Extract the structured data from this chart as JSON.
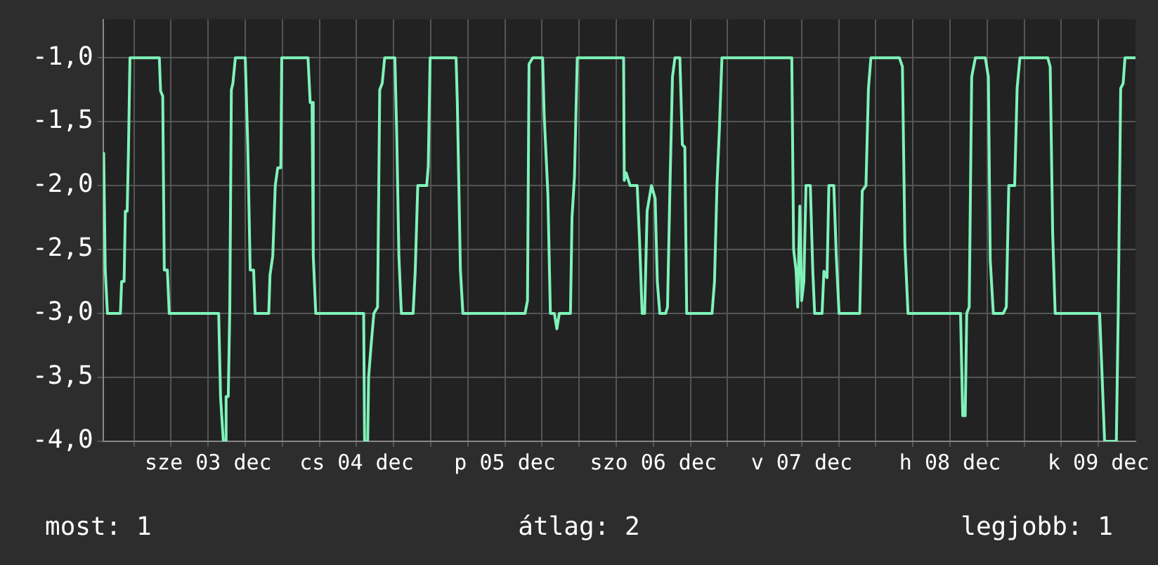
{
  "chart_data": {
    "type": "line",
    "x": [
      "--12-02T19:06",
      "--12-02T19:21",
      "--12-02T19:42",
      "--12-02T21:48",
      "--12-02T22:00",
      "--12-02T22:24",
      "--12-02T22:36",
      "--12-02T22:54",
      "--12-02T23:06",
      "--12-02T23:21",
      "--12-03T04:06",
      "--12-03T04:18",
      "--12-03T04:39",
      "--12-03T04:54",
      "--12-03T05:24",
      "--12-03T05:42",
      "--12-03T13:42",
      "--12-03T14:00",
      "--12-03T14:27",
      "--12-03T14:42",
      "--12-03T14:54",
      "--12-03T15:15",
      "--12-03T15:30",
      "--12-03T15:45",
      "--12-03T16:00",
      "--12-03T16:24",
      "--12-03T18:00",
      "--12-03T18:24",
      "--12-03T18:48",
      "--12-03T19:21",
      "--12-03T19:36",
      "--12-03T21:48",
      "--12-03T22:00",
      "--12-03T22:27",
      "--12-03T22:51",
      "--12-03T23:15",
      "--12-03T23:45",
      "--12-03T23:54",
      "--12-04T04:09",
      "--12-04T04:30",
      "--12-04T04:48",
      "--12-04T05:00",
      "--12-04T05:24",
      "--12-04T13:09",
      "--12-04T13:18",
      "--12-04T13:48",
      "--12-04T13:57",
      "--12-04T14:21",
      "--12-04T14:48",
      "--12-04T15:24",
      "--12-04T15:45",
      "--12-04T16:09",
      "--12-04T16:33",
      "--12-04T18:12",
      "--12-04T18:30",
      "--12-04T18:51",
      "--12-04T19:15",
      "--12-04T21:09",
      "--12-04T21:30",
      "--12-04T21:54",
      "--12-04T23:21",
      "--12-04T23:36",
      "--12-04T23:54",
      "--12-05T04:06",
      "--12-05T04:18",
      "--12-05T04:48",
      "--12-05T05:12",
      "--12-05T15:15",
      "--12-05T15:39",
      "--12-05T15:54",
      "--12-05T16:30",
      "--12-05T18:06",
      "--12-05T18:21",
      "--12-05T18:57",
      "--12-05T19:21",
      "--12-05T20:00",
      "--12-05T20:24",
      "--12-05T20:48",
      "--12-05T22:36",
      "--12-05T22:51",
      "--12-05T23:15",
      "--12-05T23:42",
      "--12-06T07:12",
      "--12-06T07:18",
      "--12-06T07:36",
      "--12-06T08:15",
      "--12-06T09:24",
      "--12-06T09:48",
      "--12-06T10:12",
      "--12-06T10:36",
      "--12-06T11:00",
      "--12-06T11:42",
      "--12-06T12:18",
      "--12-06T12:39",
      "--12-06T13:03",
      "--12-06T14:00",
      "--12-06T14:18",
      "--12-06T14:42",
      "--12-06T15:06",
      "--12-06T15:30",
      "--12-06T16:18",
      "--12-06T16:42",
      "--12-06T17:06",
      "--12-06T17:24",
      "--12-06T21:30",
      "--12-06T21:54",
      "--12-06T22:18",
      "--12-06T22:42",
      "--12-06T23:06",
      "--12-07T10:24",
      "--12-07T10:42",
      "--12-07T11:06",
      "--12-07T11:21",
      "--12-07T11:42",
      "--12-07T12:00",
      "--12-07T12:21",
      "--12-07T12:42",
      "--12-07T13:24",
      "--12-07T13:48",
      "--12-07T14:06",
      "--12-07T15:18",
      "--12-07T15:36",
      "--12-07T16:06",
      "--12-07T16:24",
      "--12-07T17:12",
      "--12-07T17:36",
      "--12-07T18:03",
      "--12-07T21:24",
      "--12-07T21:48",
      "--12-07T22:24",
      "--12-07T22:48",
      "--12-07T23:12",
      "--12-08T03:48",
      "--12-08T04:18",
      "--12-08T04:42",
      "--12-08T05:12",
      "--12-08T13:42",
      "--12-08T14:03",
      "--12-08T14:27",
      "--12-08T14:42",
      "--12-08T15:06",
      "--12-08T15:30",
      "--12-08T16:06",
      "--12-08T17:42",
      "--12-08T18:12",
      "--12-08T18:30",
      "--12-08T19:00",
      "--12-08T20:36",
      "--12-08T21:06",
      "--12-08T21:30",
      "--12-08T22:27",
      "--12-08T22:51",
      "--12-08T23:18",
      "--12-09T03:48",
      "--12-09T04:12",
      "--12-09T04:36",
      "--12-09T05:00",
      "--12-09T12:12",
      "--12-09T12:30",
      "--12-09T13:00",
      "--12-09T14:54",
      "--12-09T15:12",
      "--12-09T15:36",
      "--12-09T16:00",
      "--12-09T16:18",
      "--12-09T18:00"
    ],
    "values": [
      -1.74,
      -2.66,
      -3,
      -3,
      -2.75,
      -2.75,
      -2.2,
      -2.2,
      -1.74,
      -1,
      -1,
      -1.26,
      -1.3,
      -2.66,
      -2.66,
      -3,
      -3,
      -3.65,
      -4,
      -4,
      -3.65,
      -3.65,
      -2.95,
      -1.25,
      -1.2,
      -1,
      -1,
      -1.68,
      -2.66,
      -2.66,
      -3,
      -3,
      -2.7,
      -2.55,
      -2.0,
      -1.86,
      -1.86,
      -1,
      -1,
      -1.35,
      -1.35,
      -2.55,
      -3,
      -3,
      -4,
      -4,
      -3.5,
      -3.25,
      -3.0,
      -2.95,
      -1.25,
      -1.2,
      -1,
      -1,
      -1.6,
      -2.55,
      -3,
      -3,
      -2.66,
      -2.0,
      -2.0,
      -1.85,
      -1,
      -1,
      -1.35,
      -2.66,
      -3,
      -3,
      -2.9,
      -1.05,
      -1,
      -1,
      -1.45,
      -2.07,
      -3,
      -3,
      -3.12,
      -3,
      -3,
      -2.25,
      -1.93,
      -1,
      -1,
      -1.96,
      -1.9,
      -2.0,
      -2.0,
      -2.46,
      -3,
      -3,
      -2.2,
      -2.0,
      -2.1,
      -2.75,
      -3,
      -3,
      -2.95,
      -2.0,
      -1.15,
      -1,
      -1,
      -1.68,
      -1.7,
      -3,
      -3,
      -2.75,
      -2.0,
      -1.55,
      -1,
      -1,
      -2.5,
      -2.67,
      -2.95,
      -2.16,
      -2.9,
      -2.75,
      -2.0,
      -2.0,
      -2.67,
      -3,
      -3,
      -2.67,
      -2.72,
      -2.0,
      -2.0,
      -2.55,
      -3,
      -3,
      -2.04,
      -2.0,
      -1.24,
      -1,
      -1,
      -1.07,
      -2.46,
      -3,
      -3,
      -3.8,
      -3.8,
      -3,
      -2.95,
      -1.15,
      -1,
      -1,
      -1.15,
      -2.58,
      -3,
      -3,
      -2.95,
      -2.0,
      -2.0,
      -1.24,
      -1,
      -1,
      -1.07,
      -2.37,
      -3,
      -3,
      -3.37,
      -4,
      -4,
      -3,
      -1.24,
      -1.2,
      -1,
      -1
    ],
    "color": "#7ff2b9",
    "xlim": [
      "--12-02T19:00",
      "--12-09T18:00"
    ],
    "xticks": [
      {
        "value": "--12-03T00:00",
        "label": null
      },
      {
        "value": "--12-03T06:00",
        "label": null
      },
      {
        "value": "--12-03T12:00",
        "label": "sze 03 dec"
      },
      {
        "value": "--12-03T18:00",
        "label": null
      },
      {
        "value": "--12-04T00:00",
        "label": null
      },
      {
        "value": "--12-04T06:00",
        "label": null
      },
      {
        "value": "--12-04T12:00",
        "label": "cs 04 dec"
      },
      {
        "value": "--12-04T18:00",
        "label": null
      },
      {
        "value": "--12-05T00:00",
        "label": null
      },
      {
        "value": "--12-05T06:00",
        "label": null
      },
      {
        "value": "--12-05T12:00",
        "label": "p 05 dec"
      },
      {
        "value": "--12-05T18:00",
        "label": null
      },
      {
        "value": "--12-06T00:00",
        "label": null
      },
      {
        "value": "--12-06T06:00",
        "label": null
      },
      {
        "value": "--12-06T12:00",
        "label": "szo 06 dec"
      },
      {
        "value": "--12-06T18:00",
        "label": null
      },
      {
        "value": "--12-07T00:00",
        "label": null
      },
      {
        "value": "--12-07T06:00",
        "label": null
      },
      {
        "value": "--12-07T12:00",
        "label": "v 07 dec"
      },
      {
        "value": "--12-07T18:00",
        "label": null
      },
      {
        "value": "--12-08T00:00",
        "label": null
      },
      {
        "value": "--12-08T06:00",
        "label": null
      },
      {
        "value": "--12-08T12:00",
        "label": "h 08 dec"
      },
      {
        "value": "--12-08T18:00",
        "label": null
      },
      {
        "value": "--12-09T00:00",
        "label": null
      },
      {
        "value": "--12-09T06:00",
        "label": null
      },
      {
        "value": "--12-09T12:00",
        "label": "k 09 dec"
      }
    ],
    "ylim": [
      -4,
      -0.7
    ],
    "yticks": [
      {
        "value": -4,
        "label": "-4,0"
      },
      {
        "value": -3.5,
        "label": "-3,5"
      },
      {
        "value": -3,
        "label": "-3,0"
      },
      {
        "value": -2.5,
        "label": "-2,5"
      },
      {
        "value": -2,
        "label": "-2,0"
      },
      {
        "value": -1.5,
        "label": "-1,5"
      },
      {
        "value": -1,
        "label": "-1,0"
      }
    ],
    "grid": true,
    "legend": false,
    "marker": "none",
    "line_style": "solid",
    "annotations": [
      "most: 1",
      "átlag: 2",
      "legjobb: 1"
    ]
  }
}
